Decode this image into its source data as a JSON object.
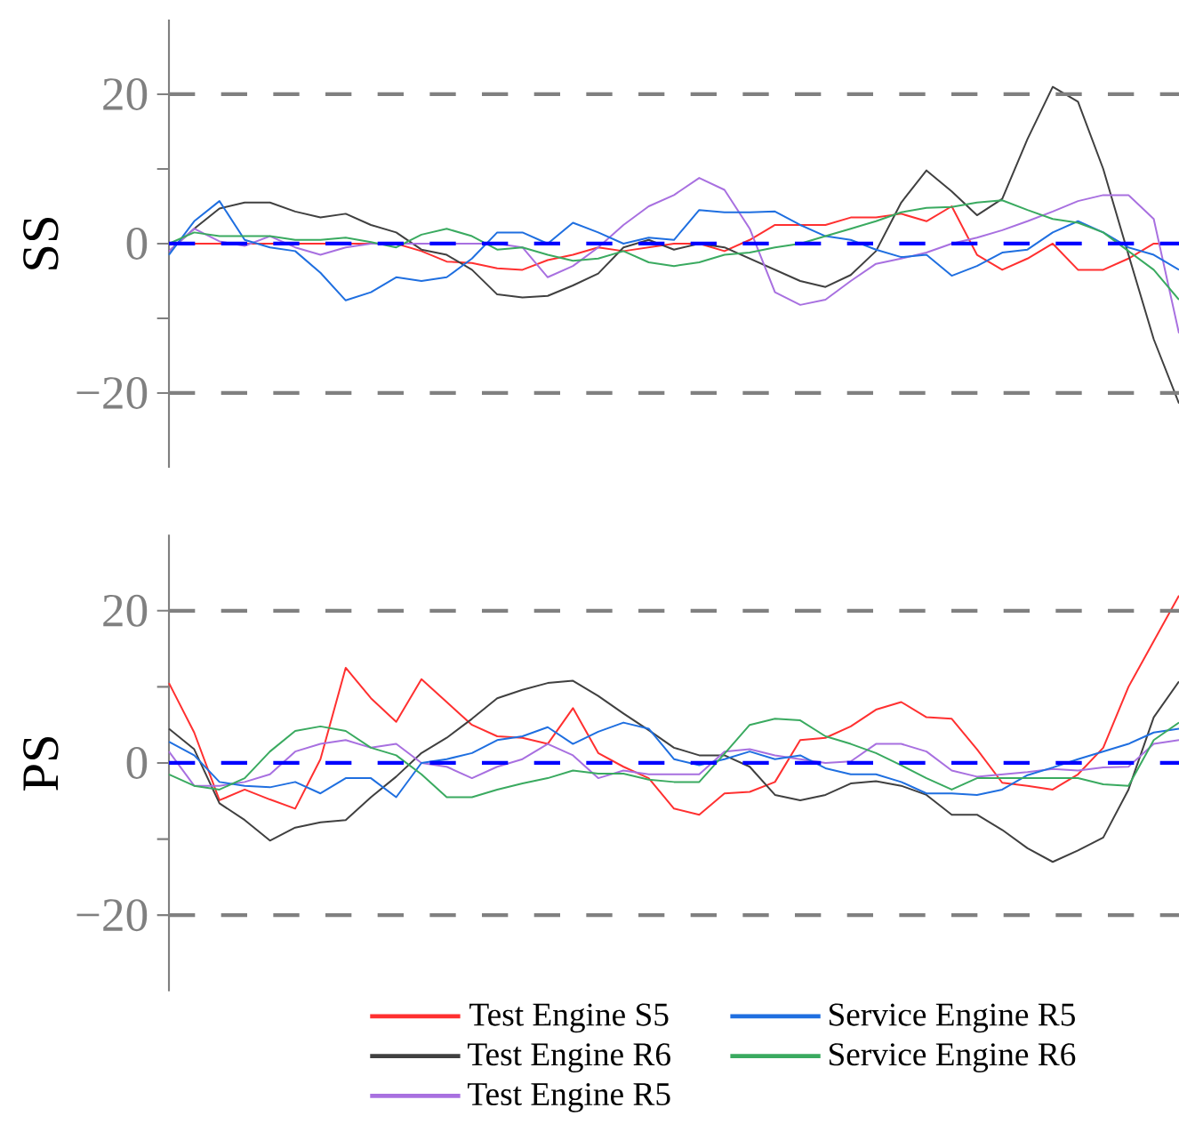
{
  "chart_data": [
    {
      "type": "line",
      "ylabel": "SS",
      "categories": [
        null,
        null,
        null,
        null,
        null,
        null,
        null,
        null,
        null,
        null,
        null,
        null,
        null,
        null,
        null,
        null,
        null,
        null,
        null,
        null,
        null,
        null,
        null,
        null,
        null,
        null,
        null,
        null,
        null,
        null,
        null,
        null,
        null,
        null,
        null,
        null,
        null,
        null,
        null,
        null,
        null
      ],
      "ylim": [
        -30,
        30
      ],
      "yticks": [
        {
          "value": -20,
          "label": "−20"
        },
        {
          "value": -10,
          "label": null
        },
        {
          "value": 0,
          "label": "0"
        },
        {
          "value": 10,
          "label": null
        },
        {
          "value": 20,
          "label": "20"
        }
      ],
      "tick_labels": "y",
      "grid": false,
      "legend": false,
      "marker": "none",
      "line_style": "solid",
      "ref_lines": [
        {
          "axis": "y",
          "value": 20,
          "color": "#808080",
          "line_style": "dashed"
        },
        {
          "axis": "y",
          "value": -20,
          "color": "#808080",
          "line_style": "dashed"
        },
        {
          "axis": "y",
          "value": 0,
          "color": "#0000ff",
          "line_style": "dashed"
        }
      ],
      "series": [
        {
          "color": "#ff3030",
          "values": [
            0,
            0,
            0,
            0,
            0,
            0,
            0,
            0,
            0,
            0,
            -1,
            -2.4,
            -2.6,
            -3.3,
            -3.5,
            -2.2,
            -1.5,
            -0.5,
            -1,
            -0.5,
            0,
            0,
            -1,
            0.5,
            2.5,
            2.5,
            2.5,
            3.5,
            3.5,
            4,
            3,
            5,
            -1.5,
            -3.5,
            -2,
            0,
            -3.5,
            -3.5,
            -2,
            0,
            0
          ]
        },
        {
          "color": "#404040",
          "values": [
            -1,
            2,
            4.7,
            5.5,
            5.5,
            4.3,
            3.5,
            4,
            2.5,
            1.5,
            -0.8,
            -1.5,
            -3.5,
            -6.8,
            -7.2,
            -7,
            -5.6,
            -4,
            -0.5,
            0.5,
            -0.8,
            0,
            -0.5,
            -2,
            -3.5,
            -5,
            -5.8,
            -4.2,
            -1,
            5.5,
            9.8,
            7,
            3.8,
            6,
            14,
            21,
            19,
            10,
            -1.5,
            -12.8,
            -21.4
          ]
        },
        {
          "color": "#a870e0",
          "values": [
            -1,
            2,
            0.3,
            -0.3,
            1,
            -0.5,
            -1.5,
            -0.5,
            0,
            0,
            0,
            0,
            0,
            0,
            -0.5,
            -4.5,
            -3,
            -0.5,
            2.5,
            5,
            6.5,
            8.8,
            7.2,
            2,
            -6.5,
            -8.2,
            -7.5,
            -5,
            -2.7,
            -2,
            -1.2,
            0,
            0.8,
            1.8,
            3,
            4.3,
            5.7,
            6.5,
            6.5,
            3.3,
            -12
          ]
        },
        {
          "color": "#1f6fe0",
          "values": [
            -1.5,
            3,
            5.7,
            0.5,
            -0.5,
            -1,
            -3.9,
            -7.6,
            -6.5,
            -4.5,
            -5,
            -4.5,
            -2,
            1.5,
            1.5,
            0,
            2.8,
            1.5,
            0,
            0.8,
            0.5,
            4.5,
            4.2,
            4.2,
            4.3,
            2.5,
            1,
            0.5,
            -0.8,
            -1.8,
            -1.5,
            -4.3,
            -3,
            -1.2,
            -0.8,
            1.5,
            3,
            1.5,
            -0.5,
            -1.5,
            -3.5
          ]
        },
        {
          "color": "#3aaa60",
          "values": [
            0,
            1.5,
            1,
            1,
            1,
            0.5,
            0.5,
            0.8,
            0.2,
            -0.5,
            1.2,
            2,
            1,
            -0.8,
            -0.5,
            -1.5,
            -2.3,
            -2,
            -1,
            -2.5,
            -3,
            -2.5,
            -1.5,
            -1.2,
            -0.5,
            0,
            1,
            2,
            3,
            4.2,
            4.8,
            4.9,
            5.5,
            5.8,
            4.5,
            3.3,
            2.8,
            1.5,
            -1,
            -3.5,
            -7.5
          ]
        }
      ]
    },
    {
      "type": "line",
      "ylabel": "PS",
      "categories": [
        null,
        null,
        null,
        null,
        null,
        null,
        null,
        null,
        null,
        null,
        null,
        null,
        null,
        null,
        null,
        null,
        null,
        null,
        null,
        null,
        null,
        null,
        null,
        null,
        null,
        null,
        null,
        null,
        null,
        null,
        null,
        null,
        null,
        null,
        null,
        null,
        null,
        null,
        null,
        null,
        null
      ],
      "ylim": [
        -30,
        30
      ],
      "yticks": [
        {
          "value": -20,
          "label": "−20"
        },
        {
          "value": -10,
          "label": null
        },
        {
          "value": 0,
          "label": "0"
        },
        {
          "value": 10,
          "label": null
        },
        {
          "value": 20,
          "label": "20"
        }
      ],
      "tick_labels": "y",
      "grid": false,
      "legend": "bottom",
      "marker": "none",
      "line_style": "solid",
      "ref_lines": [
        {
          "axis": "y",
          "value": 20,
          "color": "#808080",
          "line_style": "dashed"
        },
        {
          "axis": "y",
          "value": -20,
          "color": "#808080",
          "line_style": "dashed"
        },
        {
          "axis": "y",
          "value": 0,
          "color": "#0000ff",
          "line_style": "dashed"
        }
      ],
      "series": [
        {
          "name": "Test Engine S5",
          "color": "#ff3030",
          "values": [
            10.5,
            4,
            -4.9,
            -3.5,
            -4.8,
            -6,
            0.5,
            12.5,
            8.5,
            5.4,
            11,
            8,
            5,
            3.5,
            3.3,
            2.5,
            7.2,
            1.3,
            -0.5,
            -2,
            -6,
            -6.8,
            -4,
            -3.8,
            -2.5,
            3,
            3.3,
            4.8,
            7,
            8,
            6,
            5.8,
            1.8,
            -2.6,
            -3,
            -3.5,
            -1.5,
            2,
            10,
            16,
            22
          ]
        },
        {
          "name": "Test Engine R6",
          "color": "#404040",
          "values": [
            4.5,
            1.8,
            -5.3,
            -7.5,
            -10.2,
            -8.5,
            -7.8,
            -7.5,
            -4.5,
            -1.8,
            1.3,
            3.3,
            5.8,
            8.5,
            9.6,
            10.5,
            10.8,
            8.8,
            6.5,
            4.3,
            2,
            1,
            1,
            -0.5,
            -4.2,
            -4.9,
            -4.2,
            -2.7,
            -2.4,
            -3,
            -4.2,
            -6.8,
            -6.8,
            -8.8,
            -11.2,
            -13,
            -11.5,
            -9.8,
            -3.5,
            6,
            10.7
          ]
        },
        {
          "name": "Test Engine R5",
          "color": "#a870e0",
          "values": [
            1.5,
            -3,
            -3,
            -2.5,
            -1.5,
            1.5,
            2.5,
            3,
            2,
            2.5,
            0,
            -0.5,
            -2,
            -0.5,
            0.5,
            2.5,
            1,
            -2,
            -1,
            -1.5,
            -1.5,
            -1.5,
            1.5,
            1.8,
            1,
            0.5,
            0,
            0.2,
            2.5,
            2.5,
            1.5,
            -1,
            -1.8,
            -1.5,
            -1.2,
            -0.8,
            -1,
            -0.6,
            -0.5,
            2.5,
            3
          ]
        },
        {
          "name": "Service Engine R5",
          "color": "#1f6fe0",
          "values": [
            2.8,
            1,
            -2.5,
            -3,
            -3.2,
            -2.5,
            -4,
            -2,
            -2,
            -4.5,
            0,
            0.5,
            1.3,
            3,
            3.5,
            4.7,
            2.5,
            4.1,
            5.3,
            4.5,
            0.5,
            -0.3,
            0.5,
            1.5,
            0.5,
            1,
            -0.7,
            -1.5,
            -1.5,
            -2.5,
            -4,
            -4,
            -4.2,
            -3.5,
            -1.6,
            -0.6,
            0.5,
            1.5,
            2.5,
            4,
            4.5
          ]
        },
        {
          "name": "Service Engine R6",
          "color": "#3aaa60",
          "values": [
            -1.5,
            -3,
            -3.5,
            -2,
            1.5,
            4.2,
            4.8,
            4.2,
            2,
            1,
            -1.5,
            -4.5,
            -4.5,
            -3.5,
            -2.7,
            -2,
            -1,
            -1.4,
            -1.4,
            -2.2,
            -2.5,
            -2.5,
            1.2,
            5,
            5.8,
            5.6,
            3.5,
            2.5,
            1.3,
            -0.3,
            -2,
            -3.5,
            -2,
            -2,
            -2,
            -2,
            -2,
            -2.8,
            -3,
            3,
            5.3
          ]
        }
      ]
    }
  ]
}
